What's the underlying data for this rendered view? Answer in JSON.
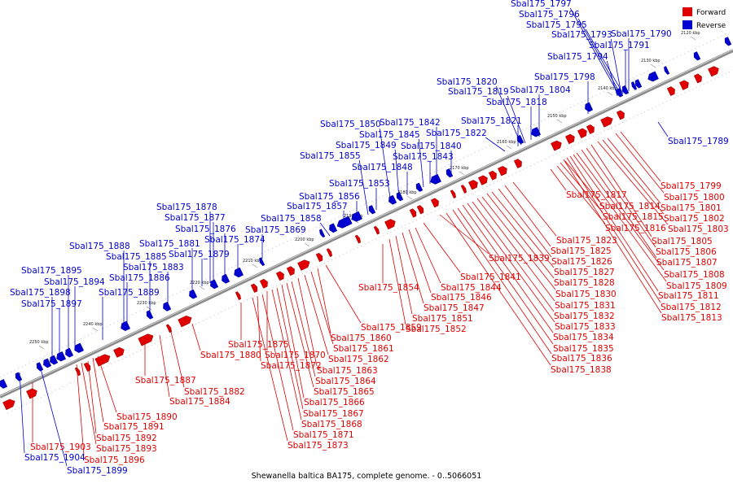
{
  "title": "Shewanella baltica BA175, complete genome. - 0..5066051",
  "legend": [
    {
      "label": "Forward",
      "color": "#e00000"
    },
    {
      "label": "Reverse",
      "color": "#0000d0"
    }
  ],
  "tick_labels": [
    "2120 kbp",
    "2130 kbp",
    "2140 kbp",
    "2150 kbp",
    "2160 kbp",
    "2170 kbp",
    "2180 kbp",
    "2190 kbp",
    "2200 kbp",
    "2210 kbp",
    "2220 kbp",
    "2230 kbp",
    "2240 kbp",
    "2250 kbp"
  ],
  "reverse_genes": [
    "Sbal175_1789",
    "Sbal175_1790",
    "Sbal175_1791",
    "Sbal175_1793",
    "Sbal175_1794",
    "Sbal175_1795",
    "Sbal175_1796",
    "Sbal175_1797",
    "Sbal175_1798",
    "Sbal175_1804",
    "Sbal175_1818",
    "Sbal175_1819",
    "Sbal175_1820",
    "Sbal175_1821",
    "Sbal175_1822",
    "Sbal175_1840",
    "Sbal175_1842",
    "Sbal175_1843",
    "Sbal175_1845",
    "Sbal175_1848",
    "Sbal175_1849",
    "Sbal175_1850",
    "Sbal175_1853",
    "Sbal175_1855",
    "Sbal175_1856",
    "Sbal175_1857",
    "Sbal175_1858",
    "Sbal175_1869",
    "Sbal175_1874",
    "Sbal175_1876",
    "Sbal175_1877",
    "Sbal175_1878",
    "Sbal175_1879",
    "Sbal175_1881",
    "Sbal175_1883",
    "Sbal175_1885",
    "Sbal175_1886",
    "Sbal175_1888",
    "Sbal175_1889",
    "Sbal175_1894",
    "Sbal175_1895",
    "Sbal175_1897",
    "Sbal175_1898",
    "Sbal175_1899",
    "Sbal175_1904"
  ],
  "forward_genes": [
    "Sbal175_1799",
    "Sbal175_1800",
    "Sbal175_1801",
    "Sbal175_1802",
    "Sbal175_1803",
    "Sbal175_1805",
    "Sbal175_1806",
    "Sbal175_1807",
    "Sbal175_1808",
    "Sbal175_1809",
    "Sbal175_1811",
    "Sbal175_1812",
    "Sbal175_1813",
    "Sbal175_1814",
    "Sbal175_1815",
    "Sbal175_1816",
    "Sbal175_1817",
    "Sbal175_1823",
    "Sbal175_1825",
    "Sbal175_1826",
    "Sbal175_1827",
    "Sbal175_1828",
    "Sbal175_1830",
    "Sbal175_1831",
    "Sbal175_1832",
    "Sbal175_1833",
    "Sbal175_1834",
    "Sbal175_1835",
    "Sbal175_1836",
    "Sbal175_1838",
    "Sbal175_1839",
    "Sbal175_1841",
    "Sbal175_1844",
    "Sbal175_1846",
    "Sbal175_1847",
    "Sbal175_1851",
    "Sbal175_1852",
    "Sbal175_1854",
    "Sbal175_1859",
    "Sbal175_1860",
    "Sbal175_1861",
    "Sbal175_1862",
    "Sbal175_1863",
    "Sbal175_1864",
    "Sbal175_1865",
    "Sbal175_1866",
    "Sbal175_1867",
    "Sbal175_1868",
    "Sbal175_1870",
    "Sbal175_1871",
    "Sbal175_1872",
    "Sbal175_1873",
    "Sbal175_1875",
    "Sbal175_1880",
    "Sbal175_1882",
    "Sbal175_1884",
    "Sbal175_1887",
    "Sbal175_1890",
    "Sbal175_1891",
    "Sbal175_1892",
    "Sbal175_1893",
    "Sbal175_1896",
    "Sbal175_1903"
  ]
}
